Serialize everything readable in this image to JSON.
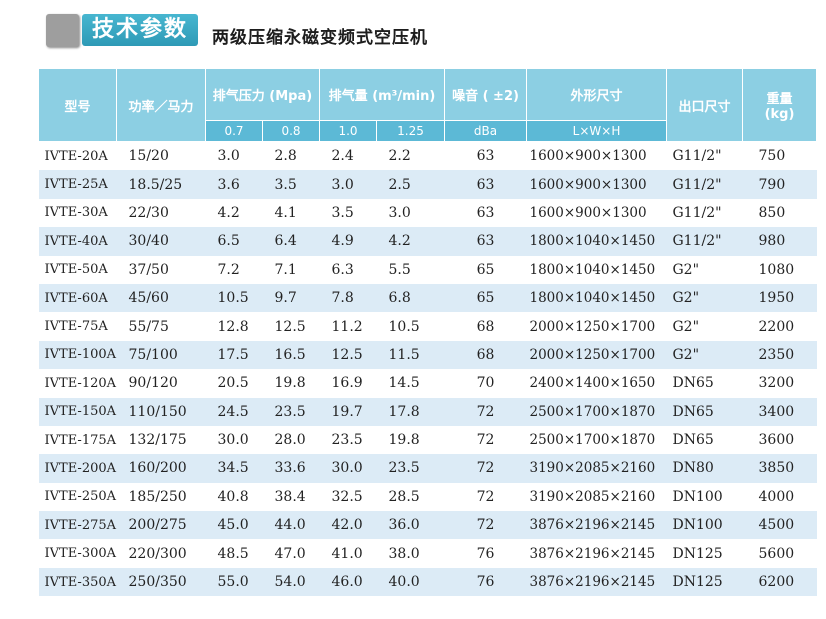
{
  "header": {
    "badge": "技术参数",
    "subtitle": "两级压缩永磁变频式空压机"
  },
  "columns": {
    "model": "型号",
    "power": "功率／马力",
    "pressure": "排气压力 (Mpa)",
    "flow": "排气量 (m³/min)",
    "noise": "噪音 ( ±2)",
    "dimensions": "外形尺寸",
    "outlet": "出口尺寸",
    "weight": "重量",
    "weight_unit": "(kg)"
  },
  "subheaders": {
    "p1": "0.7",
    "p2": "0.8",
    "p3": "1.0",
    "p4": "1.25",
    "noise_unit": "dBa",
    "dim_unit": "L×W×H"
  },
  "rows": [
    {
      "model": "IVTE-20A",
      "power": "15/20",
      "q1": "3.0",
      "q2": "2.8",
      "q3": "2.4",
      "q4": "2.2",
      "noise": "63",
      "dim": "1600×900×1300",
      "outlet": "G11/2\"",
      "weight": "750"
    },
    {
      "model": "IVTE-25A",
      "power": "18.5/25",
      "q1": "3.6",
      "q2": "3.5",
      "q3": "3.0",
      "q4": "2.5",
      "noise": "63",
      "dim": "1600×900×1300",
      "outlet": "G11/2\"",
      "weight": "790"
    },
    {
      "model": "IVTE-30A",
      "power": "22/30",
      "q1": "4.2",
      "q2": "4.1",
      "q3": "3.5",
      "q4": "3.0",
      "noise": "63",
      "dim": "1600×900×1300",
      "outlet": "G11/2\"",
      "weight": "850"
    },
    {
      "model": "IVTE-40A",
      "power": "30/40",
      "q1": "6.5",
      "q2": "6.4",
      "q3": "4.9",
      "q4": "4.2",
      "noise": "63",
      "dim": "1800×1040×1450",
      "outlet": "G11/2\"",
      "weight": "980"
    },
    {
      "model": "IVTE-50A",
      "power": "37/50",
      "q1": "7.2",
      "q2": "7.1",
      "q3": "6.3",
      "q4": "5.5",
      "noise": "65",
      "dim": "1800×1040×1450",
      "outlet": "G2\"",
      "weight": "1080"
    },
    {
      "model": "IVTE-60A",
      "power": "45/60",
      "q1": "10.5",
      "q2": "9.7",
      "q3": "7.8",
      "q4": "6.8",
      "noise": "65",
      "dim": "1800×1040×1450",
      "outlet": "G2\"",
      "weight": "1950"
    },
    {
      "model": "IVTE-75A",
      "power": "55/75",
      "q1": "12.8",
      "q2": "12.5",
      "q3": "11.2",
      "q4": "10.5",
      "noise": "68",
      "dim": "2000×1250×1700",
      "outlet": "G2\"",
      "weight": "2200"
    },
    {
      "model": "IVTE-100A",
      "power": "75/100",
      "q1": "17.5",
      "q2": "16.5",
      "q3": "12.5",
      "q4": "11.5",
      "noise": "68",
      "dim": "2000×1250×1700",
      "outlet": "G2\"",
      "weight": "2350"
    },
    {
      "model": "IVTE-120A",
      "power": "90/120",
      "q1": "20.5",
      "q2": "19.8",
      "q3": "16.9",
      "q4": "14.5",
      "noise": "70",
      "dim": "2400×1400×1650",
      "outlet": "DN65",
      "weight": "3200"
    },
    {
      "model": "IVTE-150A",
      "power": "110/150",
      "q1": "24.5",
      "q2": "23.5",
      "q3": "19.7",
      "q4": "17.8",
      "noise": "72",
      "dim": "2500×1700×1870",
      "outlet": "DN65",
      "weight": "3400"
    },
    {
      "model": "IVTE-175A",
      "power": "132/175",
      "q1": "30.0",
      "q2": "28.0",
      "q3": "23.5",
      "q4": "19.8",
      "noise": "72",
      "dim": "2500×1700×1870",
      "outlet": "DN65",
      "weight": "3600"
    },
    {
      "model": "IVTE-200A",
      "power": "160/200",
      "q1": "34.5",
      "q2": "33.6",
      "q3": "30.0",
      "q4": "23.5",
      "noise": "72",
      "dim": "3190×2085×2160",
      "outlet": "DN80",
      "weight": "3850"
    },
    {
      "model": "IVTE-250A",
      "power": "185/250",
      "q1": "40.8",
      "q2": "38.4",
      "q3": "32.5",
      "q4": "28.5",
      "noise": "72",
      "dim": "3190×2085×2160",
      "outlet": "DN100",
      "weight": "4000"
    },
    {
      "model": "IVTE-275A",
      "power": "200/275",
      "q1": "45.0",
      "q2": "44.0",
      "q3": "42.0",
      "q4": "36.0",
      "noise": "72",
      "dim": "3876×2196×2145",
      "outlet": "DN100",
      "weight": "4500"
    },
    {
      "model": "IVTE-300A",
      "power": "220/300",
      "q1": "48.5",
      "q2": "47.0",
      "q3": "41.0",
      "q4": "38.0",
      "noise": "76",
      "dim": "3876×2196×2145",
      "outlet": "DN125",
      "weight": "5600"
    },
    {
      "model": "IVTE-350A",
      "power": "250/350",
      "q1": "55.0",
      "q2": "54.0",
      "q3": "46.0",
      "q4": "40.0",
      "noise": "76",
      "dim": "3876×2196×2145",
      "outlet": "DN125",
      "weight": "6200"
    }
  ]
}
